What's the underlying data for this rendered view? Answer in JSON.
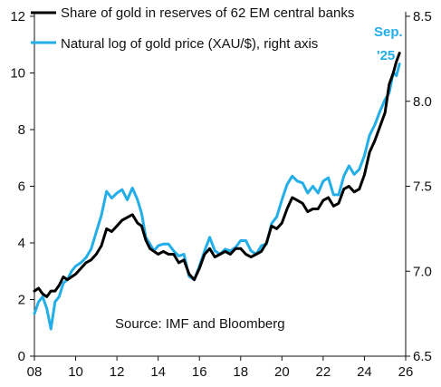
{
  "colors": {
    "series1": "#000000",
    "series2": "#22AEE8",
    "axis": "#111111"
  },
  "chart_data": {
    "type": "line",
    "title": "",
    "xlabel": "",
    "ylabel": "",
    "y2label": "",
    "xlim": [
      2008,
      2026
    ],
    "ylim": [
      0,
      12
    ],
    "y2lim": [
      6.5,
      8.5
    ],
    "grid": false,
    "legend_position": "top-left",
    "x_ticks": [
      8,
      10,
      12,
      14,
      16,
      18,
      20,
      22,
      24,
      26
    ],
    "x_tick_labels": [
      "08",
      "10",
      "12",
      "14",
      "16",
      "18",
      "20",
      "22",
      "24",
      "26"
    ],
    "y_ticks": [
      0,
      2,
      4,
      6,
      8,
      10,
      12
    ],
    "y_tick_labels": [
      "0",
      "2",
      "4",
      "6",
      "8",
      "10",
      "12"
    ],
    "y2_ticks": [
      6.5,
      7.0,
      7.5,
      8.0,
      8.5
    ],
    "y2_tick_labels": [
      "6.5",
      "7.0",
      "7.5",
      "8.0",
      "8.5"
    ],
    "source_note": "Source: IMF and Bloomberg",
    "annotation": {
      "text_line1": "Sep.",
      "text_line2": "'25",
      "x": 2025.7,
      "y2": 8.3
    },
    "series": [
      {
        "name": "Share of gold in reserves of 62 EM central banks",
        "axis": "left",
        "x": [
          2008.0,
          2008.2,
          2008.4,
          2008.6,
          2008.8,
          2009.0,
          2009.2,
          2009.4,
          2009.6,
          2009.8,
          2010.0,
          2010.25,
          2010.5,
          2010.75,
          2011.0,
          2011.25,
          2011.5,
          2011.75,
          2012.0,
          2012.25,
          2012.5,
          2012.75,
          2013.0,
          2013.2,
          2013.4,
          2013.6,
          2013.8,
          2014.0,
          2014.25,
          2014.5,
          2014.75,
          2015.0,
          2015.25,
          2015.5,
          2015.75,
          2016.0,
          2016.25,
          2016.5,
          2016.75,
          2017.0,
          2017.25,
          2017.5,
          2017.75,
          2018.0,
          2018.25,
          2018.5,
          2018.75,
          2019.0,
          2019.25,
          2019.5,
          2019.75,
          2020.0,
          2020.25,
          2020.5,
          2020.75,
          2021.0,
          2021.25,
          2021.5,
          2021.75,
          2022.0,
          2022.25,
          2022.5,
          2022.75,
          2023.0,
          2023.25,
          2023.5,
          2023.75,
          2024.0,
          2024.25,
          2024.5,
          2024.75,
          2025.0,
          2025.2,
          2025.4,
          2025.55,
          2025.7
        ],
        "values": [
          2.3,
          2.4,
          2.2,
          2.1,
          2.3,
          2.3,
          2.5,
          2.8,
          2.7,
          2.8,
          2.9,
          3.1,
          3.3,
          3.4,
          3.6,
          3.9,
          4.5,
          4.4,
          4.6,
          4.8,
          4.9,
          5.0,
          4.7,
          4.6,
          4.1,
          3.8,
          3.7,
          3.6,
          3.7,
          3.6,
          3.6,
          3.3,
          3.4,
          2.9,
          2.7,
          3.1,
          3.6,
          3.8,
          3.5,
          3.6,
          3.7,
          3.6,
          3.8,
          3.8,
          3.6,
          3.5,
          3.6,
          3.7,
          4.0,
          4.6,
          4.5,
          4.7,
          5.2,
          5.6,
          5.5,
          5.4,
          5.1,
          5.2,
          5.2,
          5.5,
          5.6,
          5.3,
          5.4,
          5.9,
          6.0,
          5.8,
          5.9,
          6.4,
          7.2,
          7.6,
          8.1,
          8.6,
          9.6,
          10.0,
          10.4,
          10.7
        ]
      },
      {
        "name": "Natural log of gold price (XAU/$), right axis",
        "axis": "right",
        "x": [
          2008.0,
          2008.2,
          2008.4,
          2008.6,
          2008.8,
          2009.0,
          2009.2,
          2009.4,
          2009.6,
          2009.8,
          2010.0,
          2010.25,
          2010.5,
          2010.75,
          2011.0,
          2011.25,
          2011.5,
          2011.75,
          2012.0,
          2012.25,
          2012.5,
          2012.75,
          2013.0,
          2013.2,
          2013.4,
          2013.6,
          2013.8,
          2014.0,
          2014.25,
          2014.5,
          2014.75,
          2015.0,
          2015.25,
          2015.5,
          2015.75,
          2016.0,
          2016.25,
          2016.5,
          2016.75,
          2017.0,
          2017.25,
          2017.5,
          2017.75,
          2018.0,
          2018.25,
          2018.5,
          2018.75,
          2019.0,
          2019.25,
          2019.5,
          2019.75,
          2020.0,
          2020.25,
          2020.5,
          2020.75,
          2021.0,
          2021.25,
          2021.5,
          2021.75,
          2022.0,
          2022.25,
          2022.5,
          2022.75,
          2023.0,
          2023.25,
          2023.5,
          2023.75,
          2024.0,
          2024.25,
          2024.5,
          2024.75,
          2025.0,
          2025.2,
          2025.4,
          2025.55,
          2025.7
        ],
        "values": [
          6.75,
          6.82,
          6.85,
          6.78,
          6.66,
          6.82,
          6.85,
          6.93,
          6.95,
          7.0,
          7.03,
          7.05,
          7.08,
          7.13,
          7.23,
          7.33,
          7.47,
          7.43,
          7.46,
          7.48,
          7.42,
          7.49,
          7.42,
          7.34,
          7.2,
          7.16,
          7.12,
          7.15,
          7.16,
          7.16,
          7.12,
          7.09,
          7.1,
          6.97,
          6.95,
          7.03,
          7.12,
          7.2,
          7.12,
          7.1,
          7.13,
          7.12,
          7.14,
          7.18,
          7.18,
          7.12,
          7.1,
          7.15,
          7.16,
          7.28,
          7.32,
          7.42,
          7.51,
          7.56,
          7.53,
          7.52,
          7.46,
          7.5,
          7.46,
          7.53,
          7.55,
          7.45,
          7.45,
          7.56,
          7.62,
          7.57,
          7.6,
          7.68,
          7.8,
          7.86,
          7.94,
          8.01,
          8.05,
          8.17,
          8.15,
          8.22
        ]
      }
    ]
  }
}
